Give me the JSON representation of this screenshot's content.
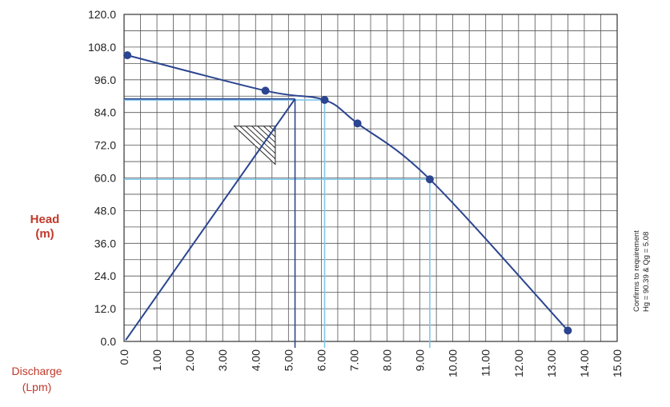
{
  "chart_data": {
    "type": "line",
    "title": "",
    "xlabel": "Discharge (Lpm)",
    "ylabel": "Head (m)",
    "xlabel_lines": [
      "Discharge",
      "(Lpm)"
    ],
    "ylabel_lines": [
      "Head",
      "(m)"
    ],
    "xlim": [
      0,
      15
    ],
    "ylim": [
      0,
      120
    ],
    "x_ticks": [
      "0.0",
      "1.00",
      "2.00",
      "3.00",
      "4.00",
      "5.00",
      "6.00",
      "7.00",
      "8.00",
      "9.00",
      "10.00",
      "11.00",
      "12.00",
      "13.00",
      "14.00",
      "15.00"
    ],
    "y_ticks": [
      "0.0",
      "12.0",
      "24.0",
      "36.0",
      "48.0",
      "60.0",
      "72.0",
      "84.0",
      "96.0",
      "108.0",
      "120.0"
    ],
    "grid": true,
    "series": [
      {
        "type": "pump-curve",
        "color": "#2b4590",
        "x": [
          0.1,
          4.3,
          6.1,
          7.1,
          9.3,
          13.5
        ],
        "y": [
          105,
          92,
          88.6,
          80,
          59.5,
          4
        ]
      },
      {
        "type": "system-curve",
        "color": "#2b4590",
        "x": [
          0.05,
          5.2
        ],
        "y": [
          0.5,
          89
        ]
      }
    ],
    "reference_lines": [
      {
        "color": "#7fc7ea",
        "y": 88.6,
        "x": 6.1
      },
      {
        "color": "#7fc7ea",
        "y": 59.5,
        "x": 9.3
      },
      {
        "color": "#2b4590",
        "x": 5.2,
        "y": 89
      }
    ],
    "side_note": [
      "Confirms to requirement",
      "Hg = 90.39 & Qg = 5.08"
    ]
  }
}
